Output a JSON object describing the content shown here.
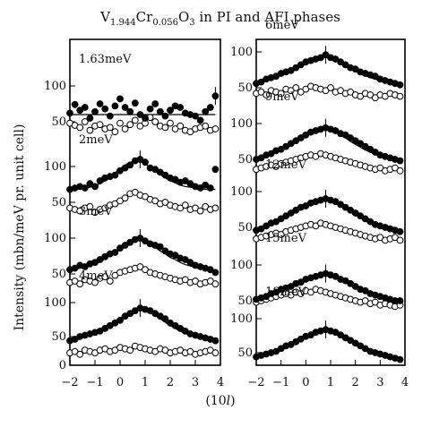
{
  "chart_data": {
    "type": "scatter",
    "title": "V1.944Cr0.056O3 in PI and AFI phases",
    "title_parts": {
      "element1": "V",
      "sub1": "1.944",
      "element2": "Cr",
      "sub2": "0.056",
      "element3": "O",
      "sub3": "3",
      "rest": " in PI and AFI phases"
    },
    "xlabel": "(10l)",
    "xlabel_parts": {
      "open": "(10",
      "italic": "l",
      "close": ")"
    },
    "ylabel": "Intensity (mbn/meV pr. unit cell)",
    "xlim": [
      -2,
      4
    ],
    "xticks": [
      "−2",
      "−1",
      "0",
      "1",
      "2",
      "3",
      "4"
    ],
    "xtick_values": [
      -2,
      -1,
      0,
      1,
      2,
      3,
      4
    ],
    "series_styles": {
      "filled": "#000000",
      "open": "#ffffff"
    },
    "left_yticks": [
      {
        "label": "100",
        "value": 100
      },
      {
        "label": "50",
        "value": 50
      },
      {
        "label": "100",
        "value": 100
      },
      {
        "label": "50",
        "value": 50
      },
      {
        "label": "100",
        "value": 100
      },
      {
        "label": "50",
        "value": 50
      },
      {
        "label": "100",
        "value": 100
      },
      {
        "label": "50",
        "value": 50
      },
      {
        "label": "0",
        "value": 0
      }
    ],
    "right_yticks": [
      {
        "label": "100",
        "value": 100
      },
      {
        "label": "50",
        "value": 50
      },
      {
        "label": "100",
        "value": 100
      },
      {
        "label": "50",
        "value": 50
      },
      {
        "label": "100",
        "value": 100
      },
      {
        "label": "50",
        "value": 50
      },
      {
        "label": "100",
        "value": 100
      },
      {
        "label": "50",
        "value": 50
      },
      {
        "label": "100",
        "value": 100
      },
      {
        "label": "50",
        "value": 50
      }
    ],
    "panels": [
      {
        "column": "left",
        "label": "1.63meV",
        "x": [
          -2.0,
          -1.8,
          -1.6,
          -1.4,
          -1.2,
          -1.0,
          -0.8,
          -0.6,
          -0.4,
          -0.2,
          0.0,
          0.2,
          0.4,
          0.6,
          0.8,
          1.0,
          1.2,
          1.4,
          1.6,
          1.8,
          2.0,
          2.2,
          2.4,
          2.6,
          2.8,
          3.0,
          3.2,
          3.4,
          3.6,
          3.8
        ],
        "filled": [
          62,
          74,
          66,
          70,
          55,
          64,
          75,
          68,
          58,
          72,
          82,
          70,
          64,
          76,
          60,
          55,
          68,
          75,
          64,
          58,
          66,
          72,
          70,
          62,
          60,
          58,
          52,
          64,
          70,
          86
        ],
        "open": [
          48,
          45,
          42,
          50,
          38,
          44,
          46,
          40,
          42,
          36,
          48,
          40,
          46,
          52,
          44,
          48,
          56,
          50,
          44,
          42,
          48,
          40,
          44,
          38,
          36,
          40,
          42,
          44,
          38,
          40
        ],
        "fit": [
          60,
          60,
          60,
          60,
          60,
          60,
          60,
          60,
          60,
          60,
          60,
          60,
          60,
          60,
          60,
          60,
          60,
          60,
          60,
          60,
          60,
          60,
          60,
          60,
          60,
          60,
          60,
          60,
          60,
          60
        ]
      },
      {
        "column": "left",
        "label": "2meV",
        "x": [
          -2.0,
          -1.8,
          -1.6,
          -1.4,
          -1.2,
          -1.0,
          -0.8,
          -0.6,
          -0.4,
          -0.2,
          0.0,
          0.2,
          0.4,
          0.6,
          0.8,
          1.0,
          1.2,
          1.4,
          1.6,
          1.8,
          2.0,
          2.2,
          2.4,
          2.6,
          2.8,
          3.0,
          3.2,
          3.4,
          3.6,
          3.8
        ],
        "filled": [
          68,
          70,
          72,
          70,
          76,
          72,
          80,
          84,
          86,
          88,
          94,
          98,
          102,
          108,
          110,
          106,
          98,
          96,
          92,
          88,
          84,
          82,
          78,
          80,
          76,
          72,
          70,
          74,
          70,
          96
        ],
        "open": [
          42,
          40,
          38,
          42,
          44,
          36,
          40,
          42,
          46,
          48,
          52,
          56,
          62,
          64,
          60,
          58,
          54,
          52,
          48,
          50,
          46,
          44,
          42,
          46,
          40,
          42,
          38,
          44,
          40,
          42
        ],
        "fit": [
          68,
          68,
          69,
          70,
          71,
          73,
          76,
          80,
          85,
          91,
          97,
          102,
          106,
          108,
          107,
          104,
          99,
          94,
          89,
          84,
          80,
          77,
          74,
          72,
          71,
          70,
          69,
          68,
          68,
          68
        ]
      },
      {
        "column": "left",
        "label": "3meV",
        "x": [
          -2.0,
          -1.8,
          -1.6,
          -1.4,
          -1.2,
          -1.0,
          -0.8,
          -0.6,
          -0.4,
          -0.2,
          0.0,
          0.2,
          0.4,
          0.6,
          0.8,
          1.0,
          1.2,
          1.4,
          1.6,
          1.8,
          2.0,
          2.2,
          2.4,
          2.6,
          2.8,
          3.0,
          3.2,
          3.4,
          3.6,
          3.8
        ],
        "filled": [
          56,
          58,
          62,
          60,
          64,
          66,
          70,
          74,
          78,
          80,
          86,
          90,
          94,
          98,
          100,
          96,
          92,
          90,
          88,
          82,
          78,
          76,
          72,
          70,
          66,
          62,
          60,
          58,
          56,
          52
        ],
        "open": [
          38,
          40,
          36,
          42,
          40,
          38,
          44,
          46,
          40,
          48,
          52,
          54,
          56,
          58,
          60,
          56,
          52,
          50,
          48,
          46,
          44,
          42,
          40,
          42,
          38,
          40,
          36,
          38,
          40,
          36
        ],
        "fit": [
          55,
          56,
          58,
          59,
          61,
          64,
          67,
          71,
          76,
          81,
          86,
          91,
          95,
          97,
          97,
          95,
          92,
          87,
          82,
          78,
          73,
          70,
          66,
          63,
          61,
          59,
          57,
          56,
          55,
          55
        ]
      },
      {
        "column": "left",
        "label": "4meV",
        "x": [
          -2.0,
          -1.8,
          -1.6,
          -1.4,
          -1.2,
          -1.0,
          -0.8,
          -0.6,
          -0.4,
          -0.2,
          0.0,
          0.2,
          0.4,
          0.6,
          0.8,
          1.0,
          1.2,
          1.4,
          1.6,
          1.8,
          2.0,
          2.2,
          2.4,
          2.6,
          2.8,
          3.0,
          3.2,
          3.4,
          3.6,
          3.8
        ],
        "filled": [
          44,
          46,
          50,
          52,
          54,
          56,
          58,
          62,
          66,
          70,
          74,
          80,
          84,
          88,
          92,
          90,
          88,
          84,
          80,
          76,
          70,
          66,
          62,
          58,
          54,
          52,
          50,
          48,
          46,
          44
        ],
        "open": [
          26,
          28,
          24,
          30,
          28,
          26,
          30,
          32,
          28,
          30,
          34,
          32,
          30,
          36,
          34,
          32,
          30,
          28,
          32,
          30,
          26,
          28,
          30,
          26,
          28,
          24,
          26,
          28,
          30,
          26
        ],
        "fit": [
          45,
          46,
          48,
          50,
          52,
          55,
          58,
          62,
          67,
          72,
          77,
          82,
          86,
          89,
          90,
          88,
          85,
          81,
          76,
          71,
          66,
          62,
          58,
          55,
          52,
          50,
          48,
          46,
          45,
          44
        ]
      },
      {
        "column": "right",
        "label": "6meV",
        "x": [
          -2.0,
          -1.8,
          -1.6,
          -1.4,
          -1.2,
          -1.0,
          -0.8,
          -0.6,
          -0.4,
          -0.2,
          0.0,
          0.2,
          0.4,
          0.6,
          0.8,
          1.0,
          1.2,
          1.4,
          1.6,
          1.8,
          2.0,
          2.2,
          2.4,
          2.6,
          2.8,
          3.0,
          3.2,
          3.4,
          3.6,
          3.8
        ],
        "filled": [
          56,
          58,
          62,
          64,
          66,
          70,
          72,
          74,
          78,
          82,
          86,
          88,
          90,
          92,
          96,
          92,
          90,
          86,
          82,
          78,
          76,
          72,
          70,
          68,
          66,
          62,
          60,
          58,
          56,
          54
        ],
        "open": [
          42,
          44,
          40,
          46,
          44,
          42,
          48,
          46,
          50,
          44,
          48,
          52,
          50,
          48,
          46,
          50,
          44,
          46,
          42,
          44,
          40,
          38,
          42,
          40,
          36,
          40,
          38,
          42,
          40,
          38
        ],
        "fit": [
          56,
          58,
          60,
          62,
          65,
          68,
          71,
          75,
          79,
          83,
          87,
          91,
          93,
          94,
          94,
          92,
          89,
          85,
          81,
          77,
          73,
          70,
          67,
          64,
          62,
          60,
          58,
          57,
          56,
          55
        ]
      },
      {
        "column": "right",
        "label": "9meV",
        "x": [
          -2.0,
          -1.8,
          -1.6,
          -1.4,
          -1.2,
          -1.0,
          -0.8,
          -0.6,
          -0.4,
          -0.2,
          0.0,
          0.2,
          0.4,
          0.6,
          0.8,
          1.0,
          1.2,
          1.4,
          1.6,
          1.8,
          2.0,
          2.2,
          2.4,
          2.6,
          2.8,
          3.0,
          3.2,
          3.4,
          3.6,
          3.8
        ],
        "filled": [
          50,
          52,
          56,
          58,
          62,
          64,
          68,
          72,
          76,
          80,
          84,
          88,
          90,
          92,
          94,
          92,
          90,
          86,
          84,
          80,
          76,
          72,
          68,
          64,
          60,
          56,
          54,
          52,
          50,
          48
        ],
        "open": [
          36,
          38,
          40,
          42,
          40,
          44,
          46,
          48,
          50,
          52,
          54,
          56,
          54,
          58,
          56,
          54,
          52,
          50,
          48,
          46,
          44,
          42,
          40,
          38,
          36,
          38,
          34,
          36,
          38,
          34
        ],
        "fit": [
          50,
          52,
          54,
          56,
          59,
          62,
          66,
          70,
          75,
          80,
          85,
          89,
          92,
          93,
          93,
          91,
          88,
          84,
          80,
          75,
          71,
          67,
          63,
          60,
          57,
          55,
          53,
          51,
          50,
          49
        ]
      },
      {
        "column": "right",
        "label": "12meV",
        "x": [
          -2.0,
          -1.8,
          -1.6,
          -1.4,
          -1.2,
          -1.0,
          -0.8,
          -0.6,
          -0.4,
          -0.2,
          0.0,
          0.2,
          0.4,
          0.6,
          0.8,
          1.0,
          1.2,
          1.4,
          1.6,
          1.8,
          2.0,
          2.2,
          2.4,
          2.6,
          2.8,
          3.0,
          3.2,
          3.4,
          3.6,
          3.8
        ],
        "filled": [
          46,
          48,
          52,
          56,
          58,
          62,
          66,
          70,
          74,
          78,
          80,
          84,
          86,
          88,
          90,
          88,
          86,
          82,
          78,
          74,
          70,
          66,
          62,
          58,
          54,
          52,
          50,
          48,
          46,
          44
        ],
        "open": [
          34,
          36,
          38,
          40,
          42,
          40,
          44,
          46,
          48,
          50,
          52,
          54,
          52,
          56,
          54,
          52,
          50,
          48,
          46,
          44,
          42,
          40,
          38,
          36,
          34,
          36,
          32,
          34,
          36,
          32
        ],
        "fit": [
          46,
          48,
          50,
          53,
          56,
          60,
          64,
          68,
          72,
          77,
          81,
          85,
          88,
          89,
          89,
          87,
          84,
          80,
          76,
          71,
          67,
          63,
          59,
          56,
          53,
          51,
          49,
          47,
          46,
          45
        ]
      },
      {
        "column": "right",
        "label": "15meV",
        "x": [
          -2.0,
          -1.8,
          -1.6,
          -1.4,
          -1.2,
          -1.0,
          -0.8,
          -0.6,
          -0.4,
          -0.2,
          0.0,
          0.2,
          0.4,
          0.6,
          0.8,
          1.0,
          1.2,
          1.4,
          1.6,
          1.8,
          2.0,
          2.2,
          2.4,
          2.6,
          2.8,
          3.0,
          3.2,
          3.4,
          3.6,
          3.8
        ],
        "filled": [
          52,
          54,
          56,
          60,
          62,
          66,
          68,
          70,
          74,
          76,
          80,
          82,
          84,
          86,
          88,
          86,
          84,
          80,
          78,
          74,
          70,
          66,
          64,
          60,
          58,
          56,
          54,
          52,
          50,
          50
        ],
        "open": [
          48,
          50,
          52,
          54,
          56,
          58,
          60,
          58,
          62,
          60,
          64,
          62,
          66,
          64,
          62,
          60,
          58,
          56,
          54,
          52,
          50,
          48,
          50,
          46,
          48,
          44,
          46,
          44,
          42,
          44
        ],
        "fit": [
          52,
          54,
          56,
          58,
          61,
          64,
          67,
          71,
          74,
          78,
          81,
          84,
          86,
          87,
          87,
          85,
          83,
          79,
          76,
          72,
          68,
          65,
          62,
          59,
          57,
          55,
          53,
          52,
          51,
          50
        ]
      },
      {
        "column": "right",
        "label": "18meV",
        "x": [
          -2.0,
          -1.8,
          -1.6,
          -1.4,
          -1.2,
          -1.0,
          -0.8,
          -0.6,
          -0.4,
          -0.2,
          0.0,
          0.2,
          0.4,
          0.6,
          0.8,
          1.0,
          1.2,
          1.4,
          1.6,
          1.8,
          2.0,
          2.2,
          2.4,
          2.6,
          2.8,
          3.0,
          3.2,
          3.4,
          3.6,
          3.8
        ],
        "filled": [
          44,
          46,
          48,
          50,
          52,
          56,
          60,
          62,
          66,
          70,
          74,
          76,
          80,
          82,
          84,
          82,
          80,
          76,
          72,
          68,
          64,
          60,
          56,
          52,
          50,
          48,
          46,
          44,
          42,
          40
        ],
        "open": [],
        "fit": [
          44,
          45,
          47,
          49,
          52,
          55,
          59,
          63,
          67,
          71,
          75,
          79,
          82,
          83,
          83,
          81,
          78,
          74,
          70,
          66,
          62,
          58,
          54,
          51,
          49,
          47,
          45,
          44,
          43,
          42
        ]
      }
    ]
  }
}
